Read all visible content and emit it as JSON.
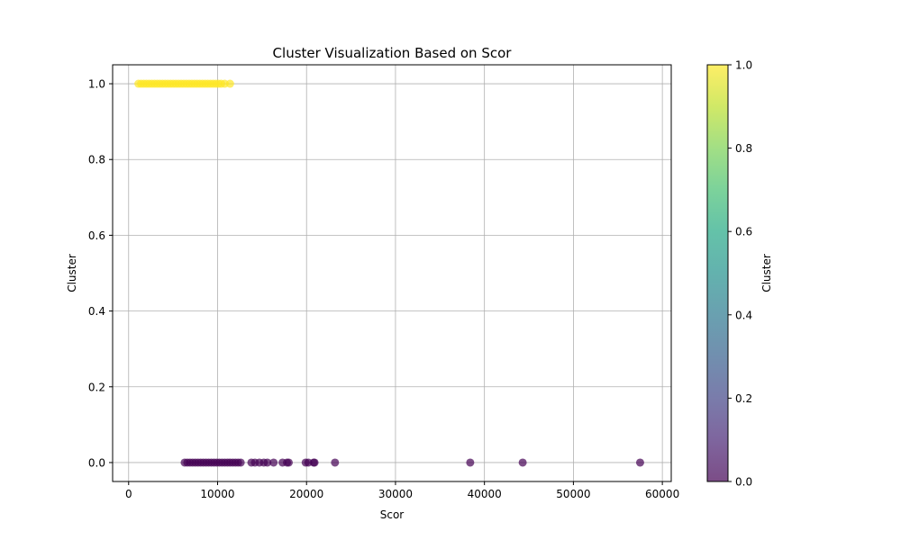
{
  "chart_data": {
    "type": "scatter",
    "title": "Cluster Visualization Based on Scor",
    "xlabel": "Scor",
    "ylabel": "Cluster",
    "xlim": [
      -1800,
      61000
    ],
    "ylim": [
      -0.05,
      1.05
    ],
    "xticks": [
      0,
      10000,
      20000,
      30000,
      40000,
      50000,
      60000
    ],
    "yticks": [
      0.0,
      0.2,
      0.4,
      0.6,
      0.8,
      1.0
    ],
    "xtick_labels": [
      "0",
      "10000",
      "20000",
      "30000",
      "40000",
      "50000",
      "60000"
    ],
    "ytick_labels": [
      "0.0",
      "0.2",
      "0.4",
      "0.6",
      "0.8",
      "1.0"
    ],
    "grid": true,
    "colormap": "viridis",
    "point_alpha": 0.7,
    "series": [
      {
        "color_value": 1,
        "color": "#fde725",
        "x": [
          1100,
          1400,
          1700,
          2000,
          2300,
          2600,
          2900,
          3200,
          3500,
          3800,
          4100,
          4400,
          4700,
          5000,
          5300,
          5600,
          5900,
          6200,
          6500,
          6800,
          7100,
          7400,
          7700,
          8000,
          8300,
          8600,
          8900,
          9200,
          9500,
          9800,
          10100,
          10400,
          10800,
          11400
        ],
        "y": [
          1,
          1,
          1,
          1,
          1,
          1,
          1,
          1,
          1,
          1,
          1,
          1,
          1,
          1,
          1,
          1,
          1,
          1,
          1,
          1,
          1,
          1,
          1,
          1,
          1,
          1,
          1,
          1,
          1,
          1,
          1,
          1,
          1,
          1
        ]
      },
      {
        "color_value": 0,
        "color": "#440154",
        "x": [
          6300,
          6600,
          6900,
          7200,
          7500,
          7800,
          8100,
          8400,
          8700,
          9000,
          9300,
          9600,
          9900,
          10200,
          10500,
          10800,
          11100,
          11400,
          11700,
          12000,
          12300,
          12600,
          13800,
          14200,
          14700,
          15200,
          15600,
          16300,
          17300,
          17800,
          18000,
          19900,
          20200,
          20800,
          20900,
          23200,
          38400,
          44300,
          57500
        ],
        "y": [
          0,
          0,
          0,
          0,
          0,
          0,
          0,
          0,
          0,
          0,
          0,
          0,
          0,
          0,
          0,
          0,
          0,
          0,
          0,
          0,
          0,
          0,
          0,
          0,
          0,
          0,
          0,
          0,
          0,
          0,
          0,
          0,
          0,
          0,
          0,
          0,
          0,
          0,
          0
        ]
      }
    ],
    "colorbar": {
      "label": "Cluster",
      "range": [
        0,
        1
      ],
      "ticks": [
        0.0,
        0.2,
        0.4,
        0.6,
        0.8,
        1.0
      ],
      "tick_labels": [
        "0.0",
        "0.2",
        "0.4",
        "0.6",
        "0.8",
        "1.0"
      ]
    }
  }
}
